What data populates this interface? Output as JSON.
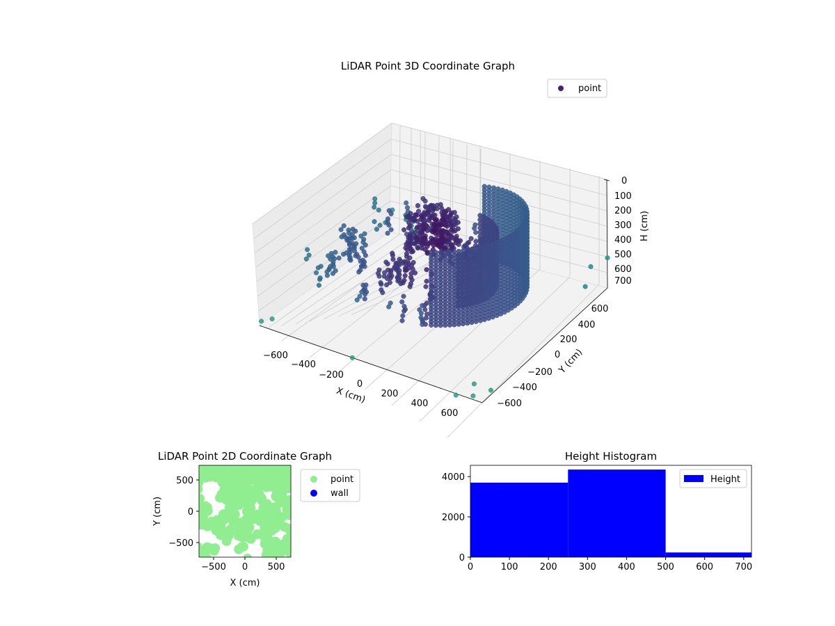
{
  "chart_data": [
    {
      "type": "scatter",
      "title": "LiDAR Point 3D Coordinate Graph",
      "xlabel": "X (cm)",
      "ylabel": "Y (cm)",
      "zlabel": "H (cm)",
      "xticks": [
        "−600",
        "−400",
        "−200",
        "0",
        "200",
        "400",
        "600"
      ],
      "yticks": [
        "−600",
        "−400",
        "−200",
        "0",
        "200",
        "400",
        "600"
      ],
      "zticks": [
        "0",
        "100",
        "200",
        "300",
        "400",
        "500",
        "600",
        "700"
      ],
      "xlim": [
        -720,
        720
      ],
      "ylim": [
        -720,
        720
      ],
      "zlim": [
        0,
        720
      ],
      "z_inverted": true,
      "grid": true,
      "legend": {
        "placement": "top-right",
        "entries": [
          {
            "label": "point",
            "color": "#4a1d6e"
          }
        ]
      },
      "series": [
        {
          "name": "point",
          "colormap": "viridis",
          "description_points": [
            {
              "x": 150,
              "y": 100,
              "z": 120
            },
            {
              "x": 100,
              "y": 50,
              "z": 220
            },
            {
              "x": -300,
              "y": 300,
              "z": 200
            },
            {
              "x": -500,
              "y": 200,
              "z": 260
            },
            {
              "x": -250,
              "y": -150,
              "z": 150
            },
            {
              "x": -600,
              "y": -200,
              "z": 300
            },
            {
              "x": 300,
              "y": 350,
              "z": 300
            },
            {
              "x": 450,
              "y": 0,
              "z": 250
            },
            {
              "x": 350,
              "y": -350,
              "z": 200
            },
            {
              "x": -700,
              "y": 600,
              "z": 600
            },
            {
              "x": 700,
              "y": 650,
              "z": 600
            },
            {
              "x": -700,
              "y": -700,
              "z": 650
            },
            {
              "x": 650,
              "y": -700,
              "z": 700
            },
            {
              "x": 0,
              "y": -700,
              "z": 720
            }
          ]
        }
      ]
    },
    {
      "type": "scatter",
      "title": "LiDAR Point 2D Coordinate Graph",
      "xlabel": "X (cm)",
      "ylabel": "Y (cm)",
      "xticks": [
        "−500",
        "0",
        "500"
      ],
      "yticks": [
        "500",
        "0",
        "−500"
      ],
      "xlim": [
        -720,
        720
      ],
      "ylim": [
        -720,
        720
      ],
      "legend": {
        "placement": "outside-right",
        "entries": [
          {
            "label": "point",
            "color": "#90ee90"
          },
          {
            "label": "wall",
            "color": "#0000ff"
          }
        ]
      },
      "series": [
        {
          "name": "point",
          "color": "#90ee90",
          "coverage": "dense cloud covering most of the plot area"
        },
        {
          "name": "wall",
          "color": "#0000ff",
          "values": []
        }
      ]
    },
    {
      "type": "bar",
      "title": "Height Histogram",
      "xlabel": "",
      "ylabel": "",
      "xticks": [
        "0",
        "100",
        "200",
        "300",
        "400",
        "500",
        "600",
        "700"
      ],
      "yticks": [
        "0",
        "2000",
        "4000"
      ],
      "xlim": [
        0,
        720
      ],
      "ylim": [
        0,
        4560
      ],
      "bin_edges": [
        0,
        250,
        500,
        720
      ],
      "values": [
        3700,
        4350,
        230
      ],
      "color": "#0000ff",
      "legend": {
        "placement": "top-right",
        "entries": [
          {
            "label": "Height",
            "color": "#0000ff"
          }
        ]
      }
    }
  ]
}
